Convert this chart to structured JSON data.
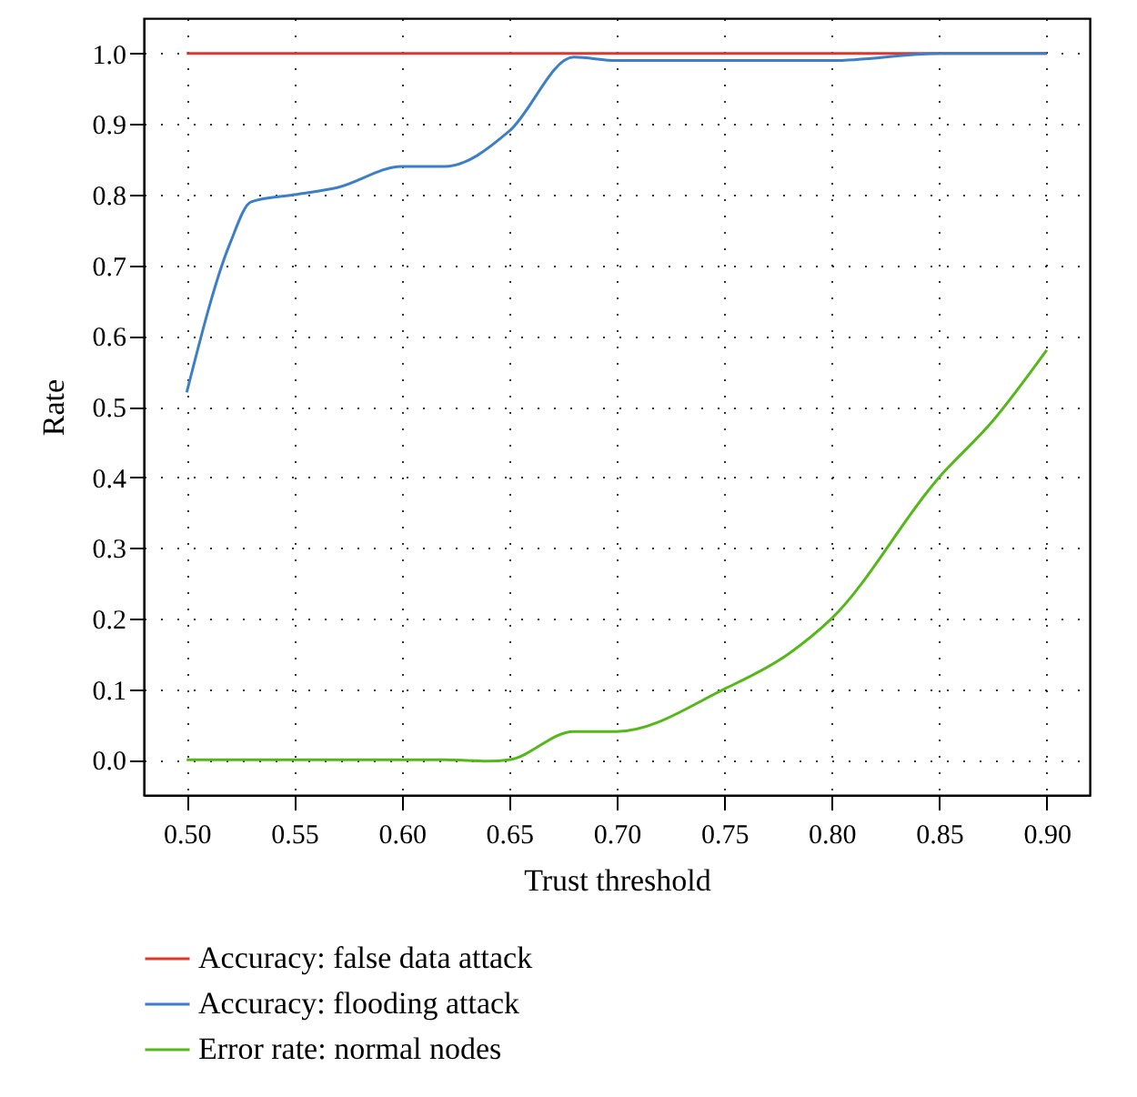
{
  "chart_data": {
    "type": "line",
    "xlabel": "Trust threshold",
    "ylabel": "Rate",
    "xlim": [
      0.48,
      0.92
    ],
    "xticks": [
      {
        "value": 0.5,
        "label": "0.50"
      },
      0.55,
      {
        "value": 0.6,
        "label": "0.60"
      },
      0.65,
      {
        "value": 0.7,
        "label": "0.70"
      },
      0.75,
      {
        "value": 0.8,
        "label": "0.80"
      },
      0.85,
      {
        "value": 0.9,
        "label": "0.90"
      }
    ],
    "ylim": [
      -0.05,
      1.05
    ],
    "yticks": [
      {
        "value": 0,
        "label": "0.0"
      },
      0.1,
      0.2,
      0.3,
      0.4,
      0.5,
      0.6,
      0.7,
      0.8,
      0.9,
      {
        "value": 1,
        "label": "1.0"
      }
    ],
    "grid": true,
    "legend": "bottom",
    "line_style": "solid",
    "marker": "none",
    "series": [
      {
        "name": "Accuracy: false data attack",
        "color": "#e0352b",
        "x": [
          0.5,
          0.9
        ],
        "values": [
          1,
          1
        ]
      },
      {
        "name": "Accuracy: flooding attack",
        "color": "#3c7fc6",
        "x": [
          0.5,
          0.52,
          0.53,
          0.55,
          0.57,
          0.6,
          0.62,
          0.65,
          0.68,
          0.7,
          0.75,
          0.8,
          0.85,
          0.9
        ],
        "values": [
          0.52,
          0.73,
          0.79,
          0.8,
          0.81,
          0.84,
          0.84,
          0.89,
          0.995,
          0.99,
          0.99,
          0.99,
          1,
          1
        ]
      },
      {
        "name": "Error rate: normal nodes",
        "color": "#55b81a",
        "x": [
          0.5,
          0.55,
          0.6,
          0.62,
          0.64,
          0.65,
          0.68,
          0.7,
          0.75,
          0.78,
          0.8,
          0.85,
          0.875,
          0.9
        ],
        "values": [
          0,
          0,
          0,
          0,
          -0.002,
          0,
          0.04,
          0.04,
          0.1,
          0.15,
          0.2,
          0.4,
          0.48,
          0.58
        ]
      }
    ]
  }
}
